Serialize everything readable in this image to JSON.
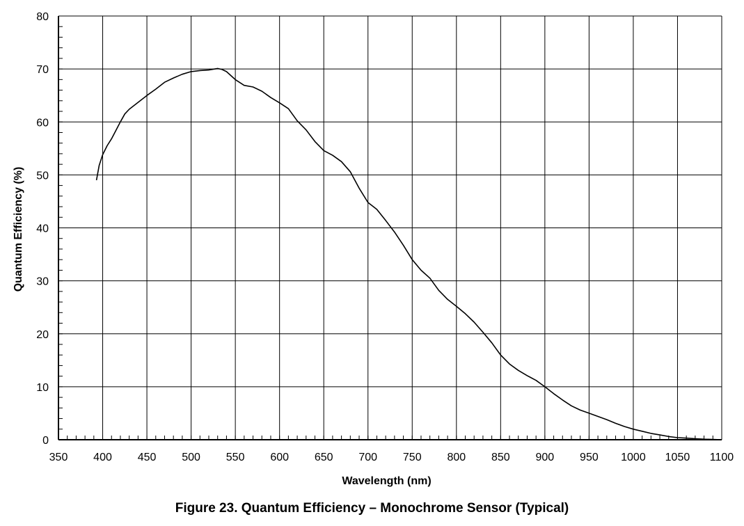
{
  "chart_data": {
    "type": "line",
    "caption": "Figure 23. Quantum Efficiency – Monochrome Sensor (Typical)",
    "xlabel": "Wavelength (nm)",
    "ylabel": "Quantum Efficiency (%)",
    "xlim": [
      350,
      1100
    ],
    "ylim": [
      0,
      80
    ],
    "xticks": [
      350,
      400,
      450,
      500,
      550,
      600,
      650,
      700,
      750,
      800,
      850,
      900,
      950,
      1000,
      1050,
      1100
    ],
    "yticks": [
      0,
      10,
      20,
      30,
      40,
      50,
      60,
      70,
      80
    ],
    "grid": true,
    "series": [
      {
        "x": [
          393,
          396,
          400,
          405,
          410,
          415,
          420,
          425,
          430,
          440,
          450,
          460,
          470,
          480,
          490,
          500,
          510,
          520,
          530,
          535,
          540,
          550,
          560,
          570,
          580,
          590,
          600,
          610,
          620,
          630,
          640,
          650,
          660,
          670,
          680,
          690,
          700,
          710,
          720,
          730,
          740,
          750,
          760,
          770,
          780,
          790,
          800,
          810,
          820,
          830,
          840,
          850,
          860,
          870,
          880,
          890,
          900,
          910,
          920,
          930,
          940,
          950,
          960,
          970,
          980,
          990,
          1000,
          1010,
          1020,
          1030,
          1040,
          1050,
          1060,
          1070,
          1080,
          1090,
          1100
        ],
        "y": [
          49,
          51.8,
          53.8,
          55.5,
          56.8,
          58.4,
          60,
          61.5,
          62.4,
          63.7,
          65,
          66.2,
          67.5,
          68.3,
          69.0,
          69.5,
          69.7,
          69.8,
          70.1,
          69.9,
          69.5,
          68,
          66.9,
          66.6,
          65.8,
          64.6,
          63.6,
          62.5,
          60.2,
          58.5,
          56.3,
          54.6,
          53.7,
          52.5,
          50.6,
          47.5,
          44.8,
          43.5,
          41.4,
          39.2,
          36.7,
          34,
          32,
          30.5,
          28.2,
          26.5,
          25.2,
          23.8,
          22.2,
          20.3,
          18.3,
          16,
          14.3,
          13.1,
          12.1,
          11.2,
          10,
          8.7,
          7.5,
          6.4,
          5.6,
          5,
          4.4,
          3.8,
          3.1,
          2.5,
          2,
          1.6,
          1.2,
          0.9,
          0.6,
          0.4,
          0.3,
          0.2,
          0.1,
          0.05,
          0
        ]
      }
    ]
  }
}
